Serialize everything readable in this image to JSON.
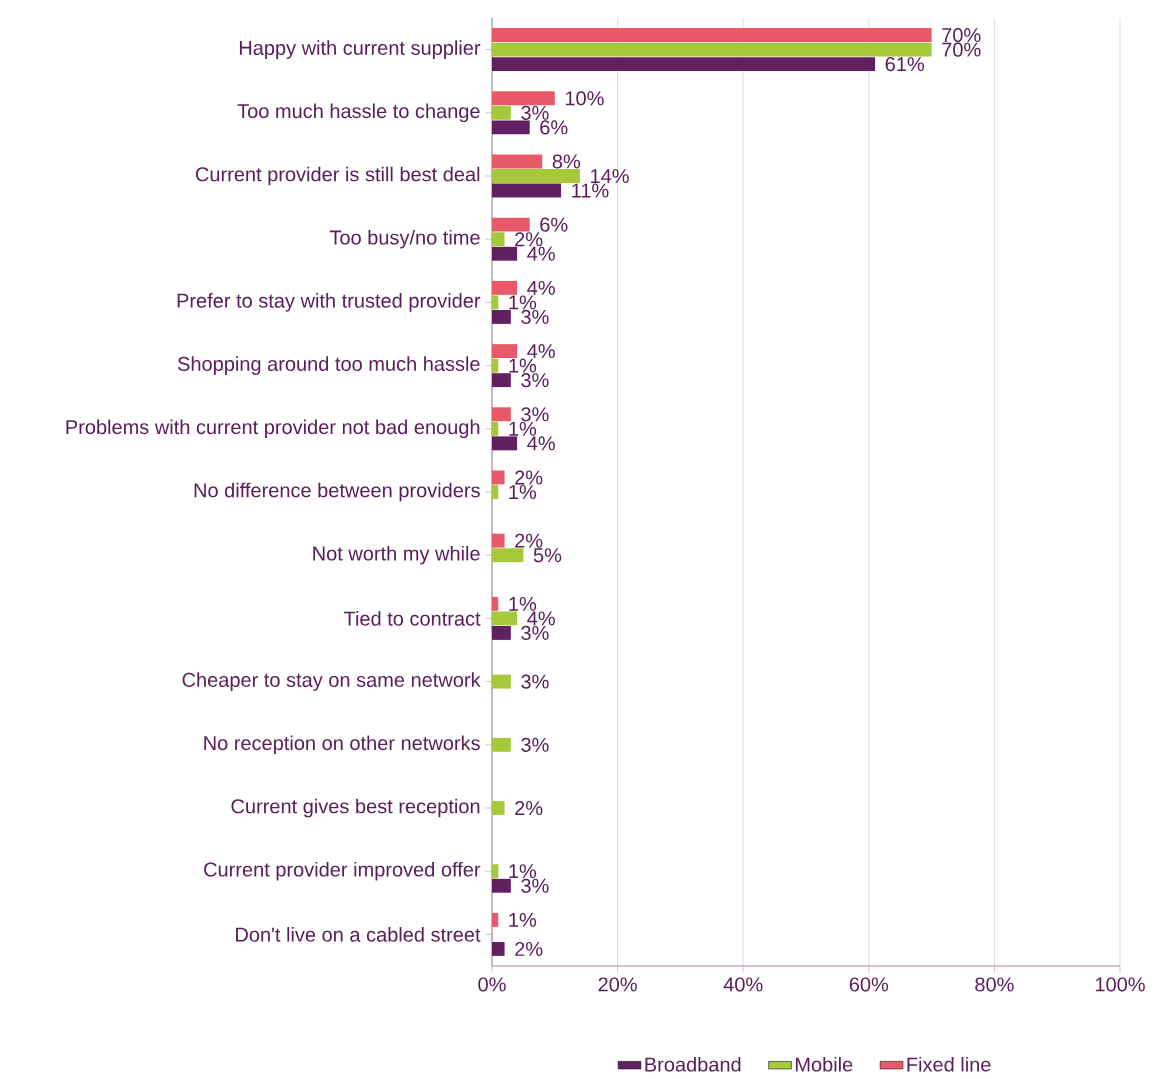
{
  "chart_data": {
    "type": "bar",
    "orientation": "horizontal",
    "categories": [
      "Happy with current supplier",
      "Too much hassle to change",
      "Current provider is still best deal",
      "Too busy/no time",
      "Prefer to stay with trusted provider",
      "Shopping around too much hassle",
      "Problems with current provider not bad enough",
      "No difference between providers",
      "Not worth my while",
      "Tied to contract",
      "Cheaper to stay on same network",
      "No reception on other networks",
      "Current gives best reception",
      "Current provider improved offer",
      "Don't live on a cabled street"
    ],
    "series": [
      {
        "name": "Broadband",
        "color": "#612062",
        "values": [
          61,
          6,
          11,
          4,
          3,
          3,
          4,
          null,
          null,
          3,
          null,
          null,
          null,
          3,
          2
        ],
        "value_labels": [
          "61%",
          "6%",
          "11%",
          "4%",
          "3%",
          "3%",
          "4%",
          null,
          null,
          "3%",
          null,
          null,
          null,
          "3%",
          "2%"
        ]
      },
      {
        "name": "Mobile",
        "color": "#a5c93a",
        "values": [
          70,
          3,
          14,
          2,
          1,
          1,
          1,
          1,
          5,
          4,
          3,
          3,
          2,
          1,
          null
        ],
        "value_labels": [
          "70%",
          "3%",
          "14%",
          "2%",
          "1%",
          "1%",
          "1%",
          "1%",
          "5%",
          "4%",
          "3%",
          "3%",
          "2%",
          "1%",
          null
        ]
      },
      {
        "name": "Fixed line",
        "color": "#e85a6a",
        "values": [
          70,
          10,
          8,
          6,
          4,
          4,
          3,
          2,
          2,
          1,
          null,
          null,
          null,
          null,
          1
        ],
        "value_labels": [
          "70%",
          "10%",
          "8%",
          "6%",
          "4%",
          "4%",
          "3%",
          "2%",
          "2%",
          "1%",
          null,
          null,
          null,
          null,
          "1%"
        ]
      }
    ],
    "xlim": [
      0,
      100
    ],
    "xticks": [
      {
        "value": 0,
        "label": "0%"
      },
      {
        "value": 20,
        "label": "20%"
      },
      {
        "value": 40,
        "label": "40%"
      },
      {
        "value": 60,
        "label": "60%"
      },
      {
        "value": 80,
        "label": "80%"
      },
      {
        "value": 100,
        "label": "100%"
      }
    ],
    "grid": "x",
    "legend": "bottom"
  }
}
